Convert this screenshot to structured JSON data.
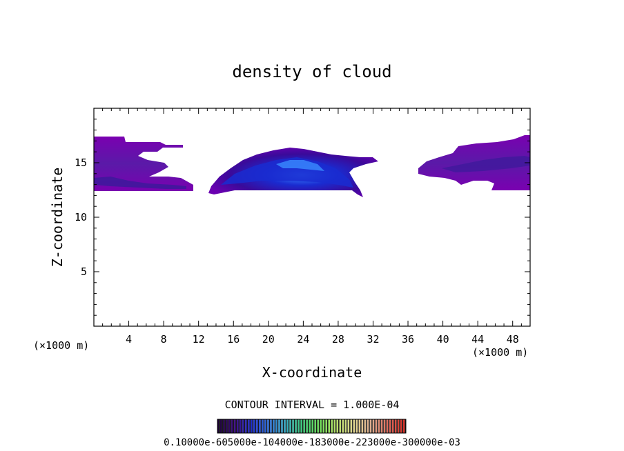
{
  "chart_data": {
    "type": "heatmap",
    "title": "density of cloud",
    "xlabel": "X-coordinate",
    "ylabel": "Z-coordinate",
    "x_unit_left": "(×1000 m)",
    "x_unit_right": "(×1000 m)",
    "xlim": [
      0,
      50
    ],
    "ylim": [
      0,
      20
    ],
    "x_ticks": [
      4,
      8,
      12,
      16,
      20,
      24,
      28,
      32,
      36,
      40,
      44,
      48
    ],
    "y_ticks": [
      5,
      10,
      15
    ],
    "contour_interval_label": "CONTOUR INTERVAL = 1.000E-04",
    "colorbar_labels_text": "0.10000e-605000e-104000e-183000e-223000e-300000e-03",
    "colorbar": {
      "min": 0.0001,
      "max": 0.0003,
      "colors": [
        "#1a0033",
        "#3a0a80",
        "#1a2bd0",
        "#2a6fe0",
        "#33b0c8",
        "#3bd07a",
        "#6ee05a",
        "#b8e06a",
        "#e0d890",
        "#e0b090",
        "#e07060",
        "#d83028"
      ]
    },
    "regions": [
      {
        "name": "left-cloud-band",
        "x": [
          0,
          11.5
        ],
        "z": [
          12.3,
          17.3
        ],
        "peak": 0.00012
      },
      {
        "name": "central-cloud-dome",
        "x": [
          13,
          31
        ],
        "z": [
          11.8,
          16.2
        ],
        "peak": 0.00025
      },
      {
        "name": "right-cloud-band",
        "x": [
          37.5,
          50
        ],
        "z": [
          12.3,
          17.3
        ],
        "peak": 0.00013
      }
    ]
  }
}
